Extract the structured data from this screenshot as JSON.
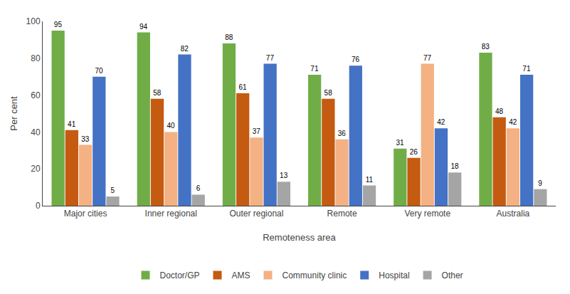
{
  "chart_data": {
    "type": "bar",
    "xlabel": "Remoteness area",
    "ylabel": "Per cent",
    "categories": [
      "Major cities",
      "Inner regional",
      "Outer regional",
      "Remote",
      "Very remote",
      "Australia"
    ],
    "series": [
      {
        "name": "Doctor/GP",
        "color": "#70ad47",
        "values": [
          95,
          94,
          88,
          71,
          31,
          83
        ]
      },
      {
        "name": "AMS",
        "color": "#c55a11",
        "values": [
          41,
          58,
          61,
          58,
          26,
          48
        ]
      },
      {
        "name": "Community clinic",
        "color": "#f4b183",
        "values": [
          33,
          40,
          37,
          36,
          77,
          42
        ]
      },
      {
        "name": "Hospital",
        "color": "#4472c4",
        "values": [
          70,
          82,
          77,
          76,
          42,
          71
        ]
      },
      {
        "name": "Other",
        "color": "#a5a5a5",
        "values": [
          5,
          6,
          13,
          11,
          18,
          9
        ]
      }
    ],
    "ylim": [
      0,
      100
    ],
    "yticks": [
      0,
      20,
      40,
      60,
      80,
      100
    ],
    "grid": false,
    "data_labels": true,
    "legend": "bottom"
  }
}
